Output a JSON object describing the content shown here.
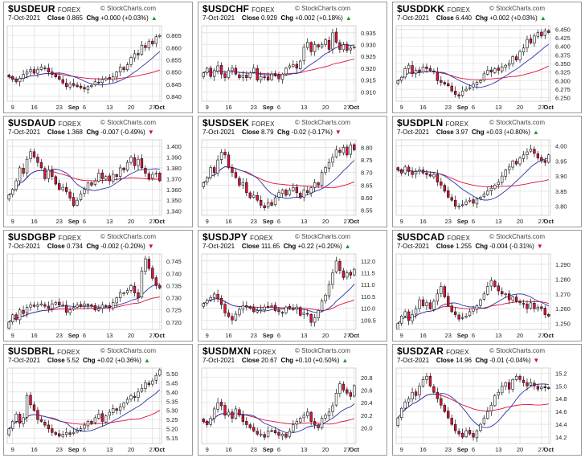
{
  "brand_text": "© StockCharts.com",
  "market_label": "FOREX",
  "date": "7-Oct-2021",
  "colors": {
    "up": "#ffffff",
    "down": "#e0103a",
    "wick": "#111111",
    "ma_short": "#2b35a8",
    "ma_long": "#e0103a",
    "grid": "#d7d7d7",
    "up_arrow": "#1a9b3a",
    "down_arrow": "#d01030"
  },
  "chart_data": [
    {
      "type": "candlestick",
      "symbol": "$USDEUR",
      "close": "0.865",
      "chg": "+0.000 (+0.03%)",
      "direction": "up",
      "yticks": [
        "0.865",
        "0.860",
        "0.855",
        "0.850",
        "0.845",
        "0.840"
      ],
      "ylim": [
        0.838,
        0.869
      ],
      "xticks": [
        "9",
        "16",
        "23",
        "Sep",
        "6",
        "13",
        "20",
        "27",
        "Oct"
      ],
      "closes": [
        0.848,
        0.847,
        0.846,
        0.8475,
        0.849,
        0.85,
        0.851,
        0.8495,
        0.851,
        0.852,
        0.8515,
        0.85,
        0.849,
        0.848,
        0.847,
        0.8455,
        0.844,
        0.845,
        0.8445,
        0.844,
        0.8435,
        0.843,
        0.844,
        0.8445,
        0.846,
        0.8455,
        0.847,
        0.8475,
        0.847,
        0.848,
        0.85,
        0.852,
        0.851,
        0.853,
        0.856,
        0.8575,
        0.857,
        0.861,
        0.86,
        0.8625,
        0.8615,
        0.8645,
        0.865
      ]
    },
    {
      "type": "candlestick",
      "symbol": "$USDCHF",
      "close": "0.929",
      "chg": "+0.002 (+0.18%)",
      "direction": "up",
      "yticks": [
        "0.935",
        "0.930",
        "0.925",
        "0.920",
        "0.915",
        "0.910"
      ],
      "ylim": [
        0.906,
        0.938
      ],
      "xticks": [
        "9",
        "16",
        "23",
        "Sep",
        "6",
        "13",
        "20",
        "27",
        "Oct"
      ],
      "closes": [
        0.918,
        0.92,
        0.9165,
        0.919,
        0.921,
        0.9175,
        0.916,
        0.919,
        0.92,
        0.9175,
        0.916,
        0.917,
        0.916,
        0.918,
        0.92,
        0.915,
        0.9165,
        0.916,
        0.915,
        0.9175,
        0.917,
        0.9155,
        0.9175,
        0.92,
        0.921,
        0.9215,
        0.92,
        0.923,
        0.929,
        0.931,
        0.927,
        0.93,
        0.929,
        0.93,
        0.932,
        0.928,
        0.935,
        0.931,
        0.928,
        0.93,
        0.9275,
        0.9285,
        0.929
      ]
    },
    {
      "type": "candlestick",
      "symbol": "$USDDKK",
      "close": "6.440",
      "chg": "+0.002 (+0.03%)",
      "direction": "up",
      "yticks": [
        "6.450",
        "6.425",
        "6.400",
        "6.375",
        "6.350",
        "6.325",
        "6.300",
        "6.275",
        "6.250"
      ],
      "ylim": [
        6.24,
        6.46
      ],
      "xticks": [
        "9",
        "16",
        "23",
        "Sep",
        "6",
        "13",
        "20",
        "27",
        "Oct"
      ],
      "closes": [
        6.3,
        6.31,
        6.335,
        6.345,
        6.32,
        6.33,
        6.325,
        6.34,
        6.335,
        6.33,
        6.325,
        6.3,
        6.295,
        6.29,
        6.285,
        6.27,
        6.26,
        6.255,
        6.27,
        6.275,
        6.28,
        6.29,
        6.295,
        6.3,
        6.32,
        6.33,
        6.325,
        6.335,
        6.33,
        6.34,
        6.345,
        6.35,
        6.37,
        6.36,
        6.385,
        6.395,
        6.42,
        6.41,
        6.43,
        6.44,
        6.43,
        6.445,
        6.44
      ]
    },
    {
      "type": "candlestick",
      "symbol": "$USDAUD",
      "close": "1.368",
      "chg": "-0.007 (-0.49%)",
      "direction": "down",
      "yticks": [
        "1.400",
        "1.390",
        "1.380",
        "1.370",
        "1.360",
        "1.350",
        "1.340"
      ],
      "ylim": [
        1.336,
        1.406
      ],
      "xticks": [
        "9",
        "16",
        "23",
        "Sep",
        "6",
        "13",
        "20",
        "27",
        "Oct"
      ],
      "closes": [
        1.355,
        1.36,
        1.368,
        1.38,
        1.375,
        1.388,
        1.395,
        1.39,
        1.385,
        1.38,
        1.37,
        1.378,
        1.372,
        1.365,
        1.36,
        1.362,
        1.358,
        1.352,
        1.345,
        1.35,
        1.356,
        1.36,
        1.366,
        1.364,
        1.368,
        1.375,
        1.37,
        1.372,
        1.368,
        1.374,
        1.372,
        1.38,
        1.378,
        1.385,
        1.39,
        1.382,
        1.388,
        1.38,
        1.375,
        1.37,
        1.374,
        1.375,
        1.368
      ]
    },
    {
      "type": "candlestick",
      "symbol": "$USDSEK",
      "close": "8.79",
      "chg": "-0.02 (-0.17%)",
      "direction": "down",
      "yticks": [
        "8.80",
        "8.75",
        "8.70",
        "8.65",
        "8.60",
        "8.55"
      ],
      "ylim": [
        8.53,
        8.83
      ],
      "xticks": [
        "9",
        "16",
        "23",
        "Sep",
        "6",
        "13",
        "20",
        "27",
        "Oct"
      ],
      "closes": [
        8.66,
        8.68,
        8.72,
        8.7,
        8.75,
        8.78,
        8.77,
        8.72,
        8.7,
        8.68,
        8.65,
        8.66,
        8.62,
        8.6,
        8.61,
        8.59,
        8.57,
        8.56,
        8.58,
        8.57,
        8.6,
        8.62,
        8.63,
        8.61,
        8.63,
        8.64,
        8.62,
        8.6,
        8.63,
        8.62,
        8.64,
        8.66,
        8.65,
        8.7,
        8.72,
        8.74,
        8.76,
        8.79,
        8.78,
        8.8,
        8.77,
        8.81,
        8.79
      ]
    },
    {
      "type": "candlestick",
      "symbol": "$USDPLN",
      "close": "3.97",
      "chg": "+0.03 (+0.80%)",
      "direction": "up",
      "yticks": [
        "4.00",
        "3.95",
        "3.90",
        "3.85",
        "3.80"
      ],
      "ylim": [
        3.77,
        4.02
      ],
      "xticks": [
        "9",
        "16",
        "23",
        "Sep",
        "6",
        "13",
        "20",
        "27",
        "Oct"
      ],
      "closes": [
        3.92,
        3.91,
        3.93,
        3.915,
        3.905,
        3.915,
        3.92,
        3.91,
        3.905,
        3.9,
        3.905,
        3.88,
        3.87,
        3.85,
        3.83,
        3.82,
        3.8,
        3.8,
        3.805,
        3.815,
        3.82,
        3.81,
        3.825,
        3.83,
        3.84,
        3.85,
        3.86,
        3.87,
        3.88,
        3.9,
        3.92,
        3.93,
        3.95,
        3.94,
        3.96,
        3.97,
        3.98,
        3.99,
        3.975,
        3.96,
        3.95,
        3.945,
        3.97
      ]
    },
    {
      "type": "candlestick",
      "symbol": "$USDGBP",
      "close": "0.734",
      "chg": "-0.002 (-0.20%)",
      "direction": "down",
      "yticks": [
        "0.745",
        "0.740",
        "0.735",
        "0.730",
        "0.725",
        "0.720"
      ],
      "ylim": [
        0.717,
        0.748
      ],
      "xticks": [
        "9",
        "16",
        "23",
        "Sep",
        "6",
        "13",
        "20",
        "27",
        "Oct"
      ],
      "closes": [
        0.72,
        0.723,
        0.721,
        0.725,
        0.7235,
        0.726,
        0.727,
        0.7265,
        0.727,
        0.7275,
        0.7265,
        0.7255,
        0.7275,
        0.728,
        0.727,
        0.727,
        0.724,
        0.725,
        0.726,
        0.727,
        0.7265,
        0.7275,
        0.727,
        0.7265,
        0.725,
        0.7255,
        0.727,
        0.7265,
        0.726,
        0.728,
        0.73,
        0.732,
        0.732,
        0.733,
        0.735,
        0.732,
        0.73,
        0.741,
        0.746,
        0.742,
        0.738,
        0.735,
        0.734
      ]
    },
    {
      "type": "candlestick",
      "symbol": "$USDJPY",
      "close": "111.65",
      "chg": "+0.22 (+0.20%)",
      "direction": "up",
      "yticks": [
        "112.0",
        "111.5",
        "111.0",
        "110.5",
        "110.0",
        "109.5"
      ],
      "ylim": [
        109.1,
        112.3
      ],
      "xticks": [
        "9",
        "16",
        "23",
        "Sep",
        "6",
        "13",
        "20",
        "27",
        "Oct"
      ],
      "closes": [
        110.2,
        110.35,
        110.45,
        110.6,
        110.4,
        110.15,
        109.8,
        109.65,
        109.5,
        109.75,
        109.95,
        110.1,
        110.05,
        110.0,
        109.85,
        109.9,
        109.95,
        110.05,
        110.05,
        110.1,
        109.9,
        109.85,
        109.8,
        110.05,
        110.0,
        109.95,
        110.05,
        109.7,
        109.8,
        109.75,
        109.4,
        109.6,
        109.9,
        110.3,
        110.55,
        111.0,
        111.5,
        112.0,
        111.6,
        111.3,
        111.5,
        111.4,
        111.65
      ]
    },
    {
      "type": "candlestick",
      "symbol": "$USDCAD",
      "close": "1.255",
      "chg": "-0.004 (-0.31%)",
      "direction": "down",
      "yticks": [
        "1.290",
        "1.280",
        "1.270",
        "1.260",
        "1.250"
      ],
      "ylim": [
        1.246,
        1.297
      ],
      "xticks": [
        "9",
        "16",
        "23",
        "Sep",
        "6",
        "13",
        "20",
        "27",
        "Oct"
      ],
      "closes": [
        1.25,
        1.255,
        1.258,
        1.252,
        1.256,
        1.26,
        1.266,
        1.262,
        1.264,
        1.26,
        1.265,
        1.27,
        1.275,
        1.268,
        1.262,
        1.258,
        1.256,
        1.253,
        1.254,
        1.255,
        1.258,
        1.26,
        1.262,
        1.266,
        1.27,
        1.275,
        1.279,
        1.275,
        1.272,
        1.27,
        1.27,
        1.266,
        1.268,
        1.265,
        1.264,
        1.263,
        1.26,
        1.264,
        1.26,
        1.261,
        1.26,
        1.256,
        1.255
      ]
    },
    {
      "type": "candlestick",
      "symbol": "$USDBRL",
      "close": "5.52",
      "chg": "+0.02 (+0.36%)",
      "direction": "up",
      "yticks": [
        "5.50",
        "5.45",
        "5.40",
        "5.35",
        "5.30",
        "5.25",
        "5.20",
        "5.15"
      ],
      "ylim": [
        5.12,
        5.53
      ],
      "xticks": [
        "9",
        "16",
        "23",
        "Sep",
        "6",
        "13",
        "20",
        "27",
        "Oct"
      ],
      "closes": [
        5.2,
        5.24,
        5.28,
        5.23,
        5.26,
        5.38,
        5.33,
        5.3,
        5.25,
        5.24,
        5.22,
        5.2,
        5.18,
        5.17,
        5.16,
        5.17,
        5.18,
        5.17,
        5.18,
        5.19,
        5.2,
        5.22,
        5.24,
        5.23,
        5.26,
        5.28,
        5.24,
        5.27,
        5.29,
        5.31,
        5.3,
        5.32,
        5.34,
        5.36,
        5.38,
        5.37,
        5.4,
        5.42,
        5.45,
        5.44,
        5.46,
        5.49,
        5.52
      ]
    },
    {
      "type": "candlestick",
      "symbol": "$USDMXN",
      "close": "20.67",
      "chg": "+0.10 (+0.50%)",
      "direction": "up",
      "yticks": [
        "20.8",
        "20.6",
        "20.4",
        "20.2",
        "20.0"
      ],
      "ylim": [
        19.75,
        20.95
      ],
      "xticks": [
        "9",
        "16",
        "23",
        "Sep",
        "6",
        "13",
        "20",
        "27",
        "Oct"
      ],
      "closes": [
        20.1,
        20.05,
        20.15,
        20.3,
        20.4,
        20.35,
        20.2,
        20.25,
        20.15,
        20.3,
        20.2,
        20.1,
        20.05,
        20.0,
        19.95,
        19.9,
        19.9,
        19.85,
        19.95,
        19.95,
        19.92,
        19.88,
        19.9,
        19.85,
        19.95,
        20.05,
        20.1,
        20.15,
        20.2,
        20.25,
        20.1,
        20.05,
        20.0,
        20.15,
        20.2,
        20.25,
        20.35,
        20.55,
        20.7,
        20.6,
        20.55,
        20.5,
        20.67
      ]
    },
    {
      "type": "candlestick",
      "symbol": "$USDZAR",
      "close": "14.96",
      "chg": "-0.01 (-0.04%)",
      "direction": "down",
      "yticks": [
        "15.2",
        "15.0",
        "14.8",
        "14.6",
        "14.4",
        "14.2"
      ],
      "ylim": [
        14.1,
        15.28
      ],
      "xticks": [
        "9",
        "16",
        "23",
        "Sep",
        "6",
        "13",
        "20",
        "27",
        "Oct"
      ],
      "closes": [
        14.5,
        14.65,
        14.75,
        14.8,
        14.9,
        14.85,
        15.0,
        15.1,
        15.15,
        15.0,
        14.9,
        14.8,
        14.7,
        14.6,
        14.5,
        14.4,
        14.3,
        14.25,
        14.2,
        14.3,
        14.25,
        14.2,
        14.3,
        14.4,
        14.5,
        14.6,
        14.7,
        14.85,
        14.9,
        15.0,
        15.05,
        14.95,
        15.1,
        15.15,
        15.1,
        15.05,
        15.0,
        15.05,
        15.0,
        14.95,
        14.98,
        14.97,
        14.96
      ]
    }
  ]
}
